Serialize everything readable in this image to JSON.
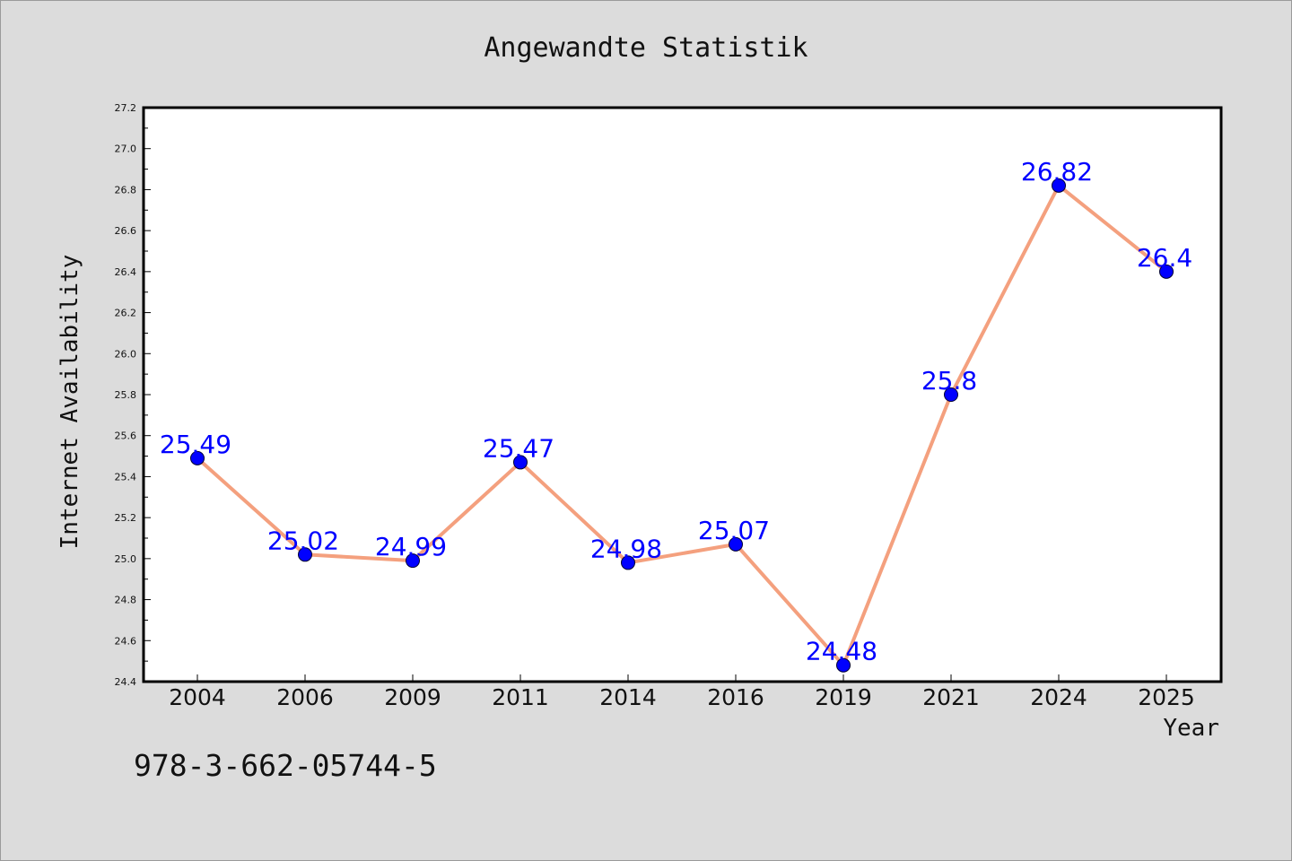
{
  "footer": {
    "isbn": "978-3-662-05744-5"
  },
  "chart_data": {
    "type": "line",
    "title": "Angewandte Statistik",
    "xlabel": "Year",
    "ylabel": "Internet Availability",
    "categories": [
      "2004",
      "2006",
      "2009",
      "2011",
      "2014",
      "2016",
      "2019",
      "2021",
      "2024",
      "2025"
    ],
    "values": [
      25.49,
      25.02,
      24.99,
      25.47,
      24.98,
      25.07,
      24.48,
      25.8,
      26.82,
      26.4
    ],
    "data_labels": [
      "25.49",
      "25.02",
      "24.99",
      "25.47",
      "24.98",
      "25.07",
      "24.48",
      "25.8",
      "26.82",
      "26.4"
    ],
    "ylim": [
      24.4,
      27.2
    ],
    "y_ticks": [
      "24.4",
      "24.6",
      "24.8",
      "25.0",
      "25.2",
      "25.4",
      "25.6",
      "25.8",
      "26.0",
      "26.2",
      "26.4",
      "26.6",
      "26.8",
      "27.0",
      "27.2"
    ],
    "grid": false,
    "legend": "none",
    "colors": {
      "line": "#f4a07e",
      "marker": "#0000ff",
      "data_label": "#0000ff",
      "plot_background": "#ffffff",
      "figure_background": "#dcdcdc"
    }
  }
}
